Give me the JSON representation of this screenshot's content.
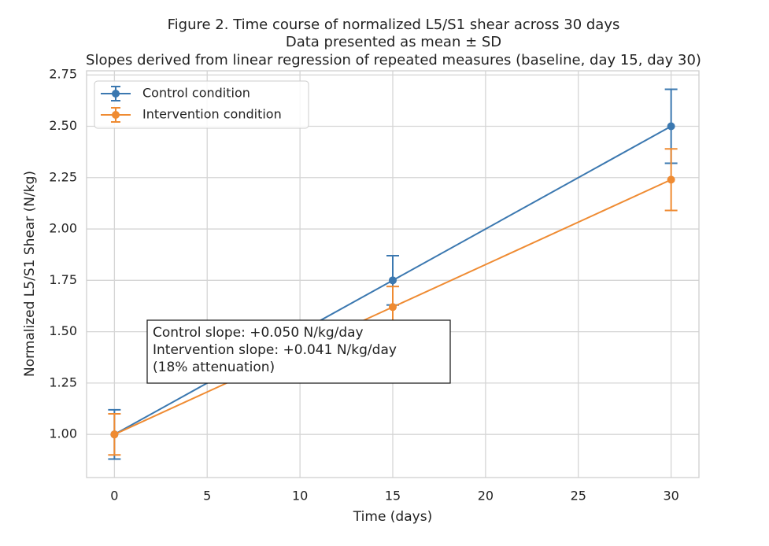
{
  "chart_data": {
    "type": "errorbar-line",
    "title": "Figure 2. Time course of normalized L5/S1 shear across 30 days",
    "subtitle": [
      "Data presented as mean ± SD",
      "Slopes derived from linear regression of repeated measures (baseline, day 15, day 30)"
    ],
    "x_label": "Time (days)",
    "y_label": "Normalized L5/S1 Shear (N/kg)",
    "x": [
      0,
      15,
      30
    ],
    "series": [
      {
        "name": "Control condition",
        "color": "#3b78b0",
        "values": [
          1.0,
          1.75,
          2.5
        ],
        "errors": [
          0.12,
          0.12,
          0.18
        ]
      },
      {
        "name": "Intervention condition",
        "color": "#ef8b32",
        "values": [
          1.0,
          1.62,
          2.24
        ],
        "errors": [
          0.1,
          0.1,
          0.15
        ]
      }
    ],
    "xlim": [
      -1.5,
      31.5
    ],
    "ylim": [
      0.79,
      2.77
    ],
    "xticks": [
      0,
      5,
      10,
      15,
      20,
      25,
      30
    ],
    "yticks": [
      {
        "value": 1,
        "label": "1.00"
      },
      {
        "value": 1.25,
        "label": "1.25"
      },
      {
        "value": 1.5,
        "label": "1.50"
      },
      {
        "value": 1.75,
        "label": "1.75"
      },
      {
        "value": 2,
        "label": "2.00"
      },
      {
        "value": 2.25,
        "label": "2.25"
      },
      {
        "value": 2.5,
        "label": "2.50"
      },
      {
        "value": 2.75,
        "label": "2.75"
      }
    ],
    "grid": true,
    "legend": "upper left",
    "annotation": [
      "Control slope: +0.050 N/kg/day",
      "Intervention slope: +0.041 N/kg/day",
      "(18% attenuation)"
    ]
  }
}
